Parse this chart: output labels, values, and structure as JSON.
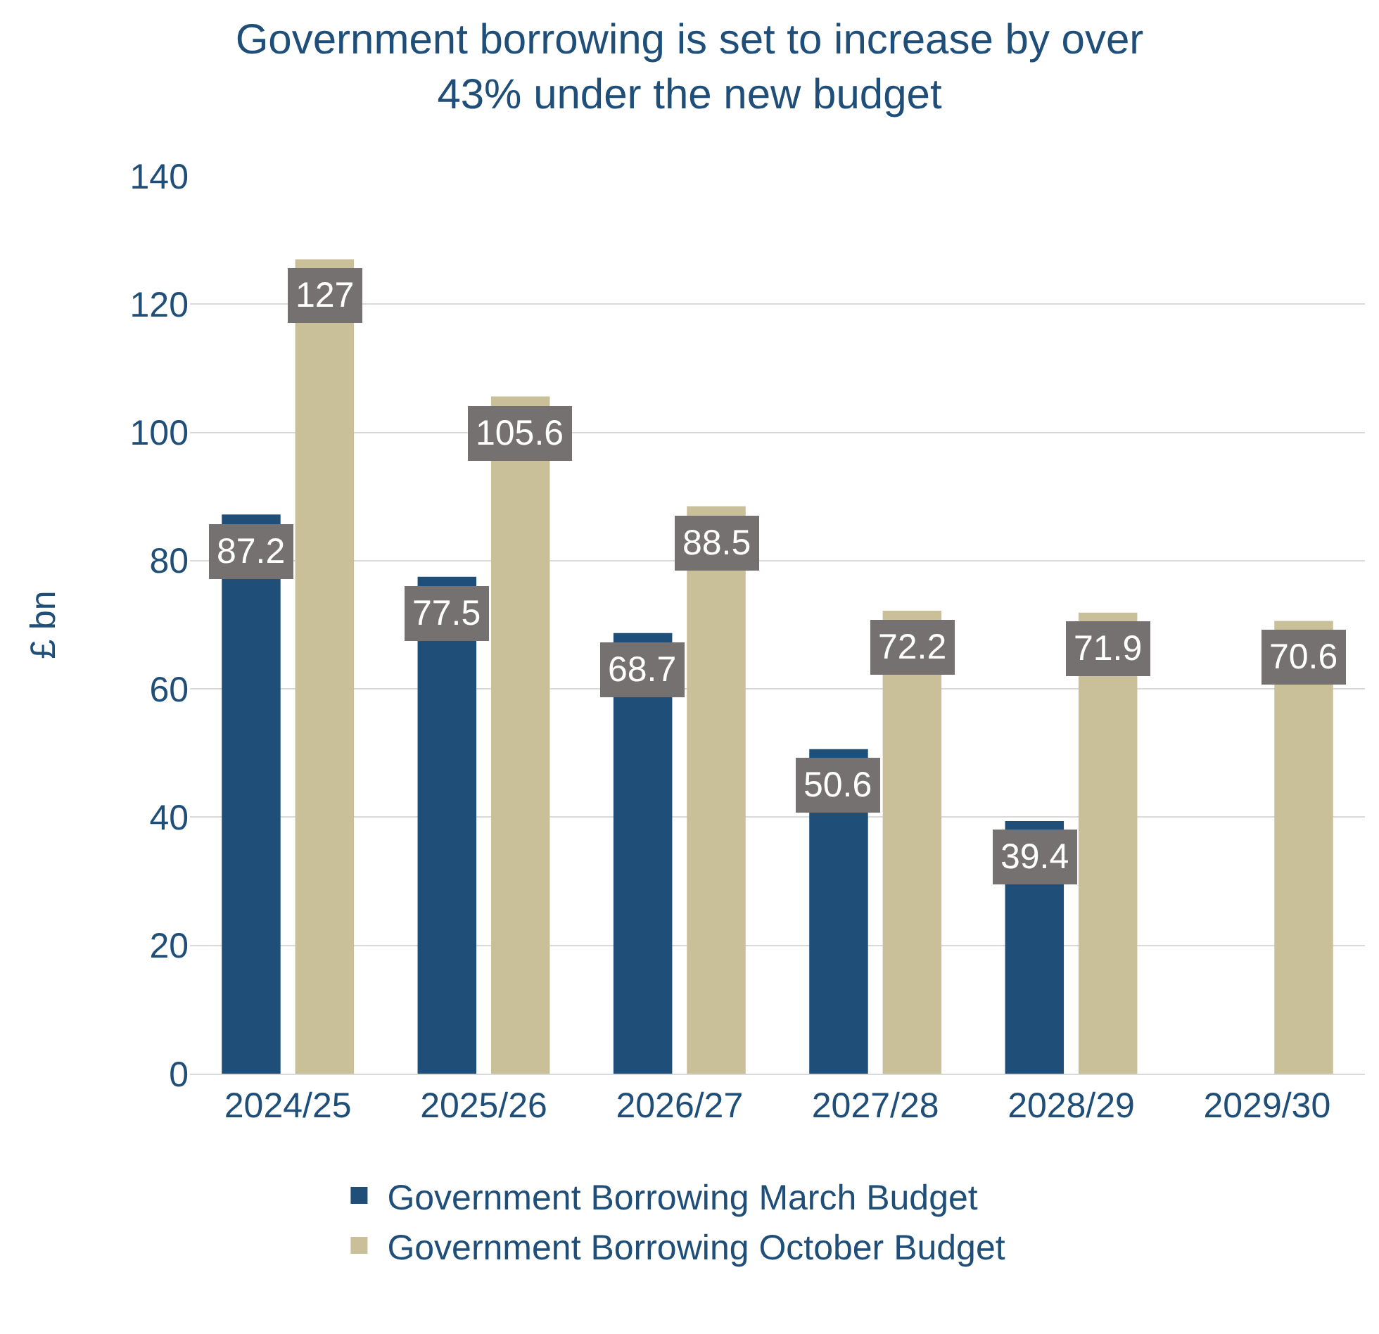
{
  "chart_data": {
    "type": "bar",
    "title": "Government borrowing is set to increase by over 43% under the new budget",
    "ylabel": "£ bn",
    "categories": [
      "2024/25",
      "2025/26",
      "2026/27",
      "2027/28",
      "2028/29",
      "2029/30"
    ],
    "series": [
      {
        "name": "Government Borrowing March Budget",
        "color": "#1f4e79",
        "values": [
          87.2,
          77.5,
          68.7,
          50.6,
          39.4,
          null
        ]
      },
      {
        "name": "Government Borrowing October Budget",
        "color": "#c9bf99",
        "values": [
          127,
          105.6,
          88.5,
          72.2,
          71.9,
          70.6
        ]
      }
    ],
    "ylim": [
      0,
      140
    ],
    "yticks": [
      0,
      20,
      40,
      60,
      80,
      100,
      120,
      140
    ],
    "grid": "y",
    "legend": "bottom",
    "data_labels": true
  }
}
